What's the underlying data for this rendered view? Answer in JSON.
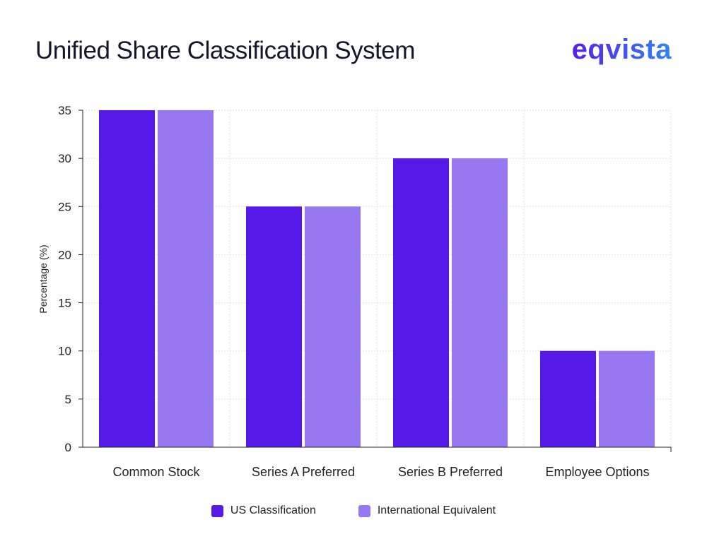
{
  "logo": {
    "text": "eqvista",
    "color_start": "#5a1ee8",
    "color_end": "#2f86f0"
  },
  "chart_data": {
    "type": "bar",
    "title": "Unified Share Classification System",
    "xlabel": "",
    "ylabel": "Percentage (%)",
    "ylim": [
      0,
      35
    ],
    "yticks": [
      0,
      5,
      10,
      15,
      20,
      25,
      30,
      35
    ],
    "ytick_labels": [
      "0",
      "5",
      "10",
      "15",
      "20",
      "25",
      "30",
      "35"
    ],
    "grid": true,
    "legend_position": "bottom-center",
    "categories": [
      "Common Stock",
      "Series A Preferred",
      "Series B Preferred",
      "Employee Options"
    ],
    "series": [
      {
        "name": "US Classification",
        "color": "#5519e8",
        "values": [
          35,
          25,
          30,
          10
        ]
      },
      {
        "name": "International Equivalent",
        "color": "#9878f0",
        "values": [
          35,
          25,
          30,
          10
        ]
      }
    ]
  }
}
